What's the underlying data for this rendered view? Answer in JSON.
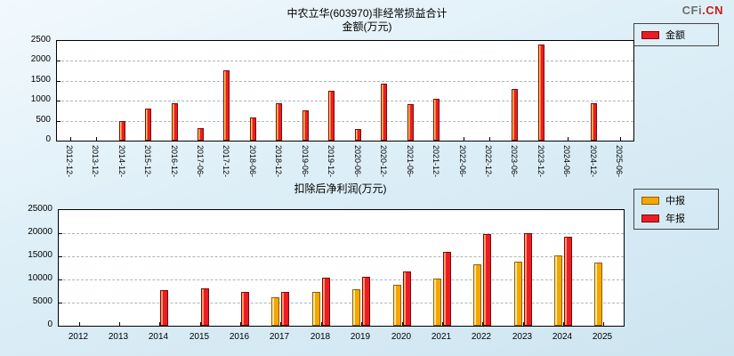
{
  "logo": {
    "prefix": "CFi",
    "suffix": ".CN"
  },
  "chart_data": [
    {
      "type": "bar",
      "title_line1": "中农立华(603970)非经常损益合计",
      "title_line2": "金额(万元)",
      "categories": [
        "2012-12-",
        "2013-12-",
        "2014-12-",
        "2015-12-",
        "2016-12-",
        "2017-06-",
        "2017-12-",
        "2018-06-",
        "2018-12-",
        "2019-06-",
        "2019-12-",
        "2020-06-",
        "2020-12-",
        "2021-06-",
        "2021-12-",
        "2022-06-",
        "2022-12-",
        "2023-06-",
        "2023-12-",
        "2024-06-",
        "2024-12-",
        "2025-06-"
      ],
      "series": [
        {
          "name": "金额",
          "color": "#ed1c24",
          "highlight": "#ffd24d",
          "border": "#7a0a0a",
          "values": [
            null,
            null,
            500,
            800,
            930,
            320,
            1760,
            580,
            930,
            760,
            1250,
            300,
            1430,
            910,
            1060,
            null,
            null,
            1290,
            2400,
            null,
            930,
            null
          ]
        }
      ],
      "ylim": [
        0,
        2500
      ],
      "yticks": [
        0,
        500,
        1000,
        1500,
        2000,
        2500
      ],
      "legend_position": "top-right",
      "grid": "dashed-horizontal",
      "xlabel": "",
      "ylabel": ""
    },
    {
      "type": "bar",
      "title": "扣除后净利润(万元)",
      "categories": [
        "2012",
        "2013",
        "2014",
        "2015",
        "2016",
        "2017",
        "2018",
        "2019",
        "2020",
        "2021",
        "2022",
        "2023",
        "2024",
        "2025"
      ],
      "series": [
        {
          "name": "中报",
          "color": "#f7a600",
          "highlight": "#ffe9a0",
          "border": "#8a5f00",
          "values": [
            null,
            null,
            null,
            null,
            null,
            6100,
            7400,
            7800,
            8800,
            10100,
            13200,
            13800,
            15200,
            13700
          ]
        },
        {
          "name": "年报",
          "color": "#ed1c24",
          "highlight": "#ff9a66",
          "border": "#7a0a0a",
          "values": [
            null,
            null,
            7600,
            8100,
            7400,
            7250,
            10400,
            10500,
            11700,
            16000,
            19800,
            20000,
            19300,
            null
          ]
        }
      ],
      "ylim": [
        0,
        25000
      ],
      "yticks": [
        0,
        5000,
        10000,
        15000,
        20000,
        25000
      ],
      "legend_position": "top-right",
      "grid": "dashed-horizontal",
      "xlabel": "",
      "ylabel": ""
    }
  ]
}
